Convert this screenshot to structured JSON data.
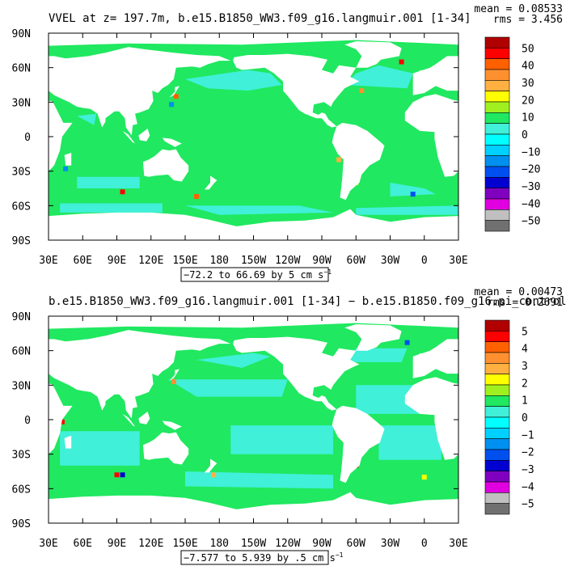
{
  "panels": [
    {
      "title": "VVEL at z= 197.7m, b.e15.B1850_WW3.f09_g16.langmuir.001 [1-34]",
      "mean": "mean = 0.08533",
      "rms": "rms = 3.456",
      "range_label": "−72.2 to 66.69 by 5 cm s",
      "range_sup": "−1",
      "colorbar_labels": [
        "50",
        "40",
        "30",
        "20",
        "10",
        "0",
        "−10",
        "−20",
        "−30",
        "−40",
        "−50"
      ]
    },
    {
      "title": "b.e15.B1850_WW3.f09_g16.langmuir.001 [1-34] − b.e15.B1850.f09_g16.pi_control",
      "mean": "mean = 0.00473",
      "rms": "rms = 0.2691",
      "range_label": "−7.577 to 5.939 by .5 cm s",
      "range_sup": "−1",
      "colorbar_labels": [
        "5",
        "4",
        "3",
        "2",
        "1",
        "0",
        "−1",
        "−2",
        "−3",
        "−4",
        "−5"
      ]
    }
  ],
  "colors": {
    "land": "#ffffff",
    "ocean_background": "#20e860",
    "ocean_cyan": "#40f0d8",
    "colorbar": [
      "#b00000",
      "#ff0000",
      "#ff6000",
      "#ff9030",
      "#ffb040",
      "#ffff00",
      "#a0f020",
      "#20e860",
      "#40f0d8",
      "#00ffff",
      "#00d0ff",
      "#0090f0",
      "#0050f0",
      "#0000d0",
      "#8000c0",
      "#e000e0",
      "#c0c0c0",
      "#707070"
    ]
  },
  "chart_data": [
    {
      "type": "heatmap",
      "title": "VVEL at z= 197.7m, b.e15.B1850_WW3.f09_g16.langmuir.001 [1-34]",
      "xlabel": "",
      "ylabel": "",
      "x_tick_labels": [
        "30E",
        "60E",
        "90E",
        "120E",
        "150E",
        "180",
        "150W",
        "120W",
        "90W",
        "60W",
        "30W",
        "0",
        "30E"
      ],
      "y_tick_labels": [
        "90N",
        "60N",
        "30N",
        "0",
        "30S",
        "60S",
        "90S"
      ],
      "xlim": [
        30,
        390
      ],
      "ylim": [
        -90,
        90
      ],
      "color_levels": [
        -50,
        -45,
        -40,
        -35,
        -30,
        -25,
        -20,
        -15,
        -10,
        -5,
        0,
        5,
        10,
        15,
        20,
        25,
        30,
        35,
        40,
        45,
        50
      ],
      "min": -72.2,
      "max": 66.69,
      "interval": 5,
      "units": "cm s-1",
      "mean": 0.08533,
      "rms": 3.456
    },
    {
      "type": "heatmap",
      "title": "b.e15.B1850_WW3.f09_g16.langmuir.001 [1-34] − b.e15.B1850.f09_g16.pi_control",
      "xlabel": "",
      "ylabel": "",
      "x_tick_labels": [
        "30E",
        "60E",
        "90E",
        "120E",
        "150E",
        "180",
        "150W",
        "120W",
        "90W",
        "60W",
        "30W",
        "0",
        "30E"
      ],
      "y_tick_labels": [
        "90N",
        "60N",
        "30N",
        "0",
        "30S",
        "60S",
        "90S"
      ],
      "xlim": [
        30,
        390
      ],
      "ylim": [
        -90,
        90
      ],
      "color_levels": [
        -5,
        -4.5,
        -4,
        -3.5,
        -3,
        -2.5,
        -2,
        -1.5,
        -1,
        -0.5,
        0,
        0.5,
        1,
        1.5,
        2,
        2.5,
        3,
        3.5,
        4,
        4.5,
        5
      ],
      "min": -7.577,
      "max": 5.939,
      "interval": 0.5,
      "units": "cm s-1",
      "mean": 0.00473,
      "rms": 0.2691
    }
  ]
}
